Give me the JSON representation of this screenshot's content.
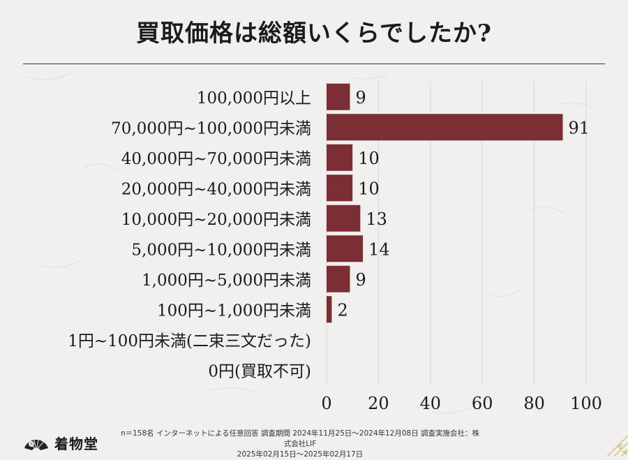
{
  "title": "買取価格は総額いくらでしたか?",
  "footer": {
    "brand": "着物堂",
    "note_line1": "n＝158名 インターネットによる任意回答 調査期間 2024年11月25日～2024年12月08日 調査実施会社：株式会社LIF",
    "note_line2": "2025年02月15日～2025年02月17日"
  },
  "colors": {
    "bar": "#7b2e33",
    "grid": "#d9d6d3",
    "text": "#1b1b1b"
  },
  "chart_data": {
    "type": "bar",
    "orientation": "horizontal",
    "categories": [
      "100,000円以上",
      "70,000円~100,000円未満",
      "40,000円~70,000円未満",
      "20,000円~40,000円未満",
      "10,000円~20,000円未満",
      "5,000円~10,000円未満",
      "1,000円~5,000円未満",
      "100円~1,000円未満",
      "1円~100円未満(二束三文だった)",
      "0円(買取不可)"
    ],
    "values": [
      9,
      91,
      10,
      10,
      13,
      14,
      9,
      2,
      0,
      0
    ],
    "value_labels": [
      "9",
      "91",
      "10",
      "10",
      "13",
      "14",
      "9",
      "2",
      "",
      ""
    ],
    "xlim": [
      0,
      100
    ],
    "xticks": [
      0,
      20,
      40,
      60,
      80,
      100
    ],
    "grid": true
  }
}
